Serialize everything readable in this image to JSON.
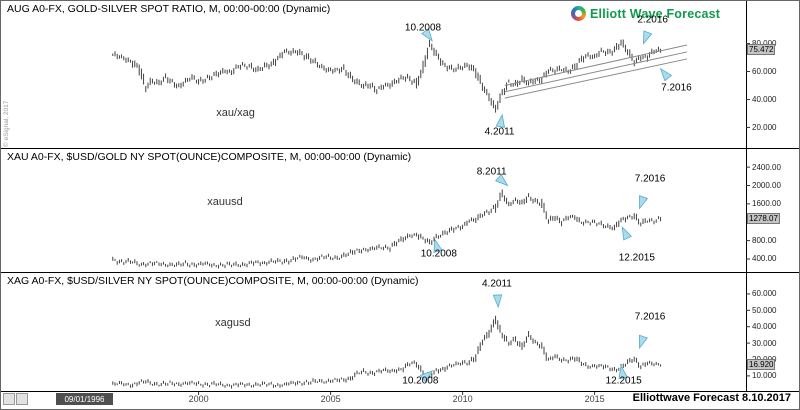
{
  "branding": {
    "logo_text": "Elliott Wave Forecast",
    "logo_colors": [
      "#29a8ab",
      "#3bb54a",
      "#f59e1b",
      "#e64c3c",
      "#7f55a0",
      "#2d6cb5",
      "#29a8ab"
    ],
    "watermark": "Elliottwave Forecast 8.10.2017",
    "vendor_copyright": "© eSignal, 2017"
  },
  "time_axis": {
    "selected_date": "09/01/1996",
    "ticks": [
      {
        "year": 2000,
        "label": "2000"
      },
      {
        "year": 2005,
        "label": "2005"
      },
      {
        "year": 2010,
        "label": "2010"
      },
      {
        "year": 2015,
        "label": "2015"
      }
    ]
  },
  "chart_data": [
    {
      "type": "bar",
      "style": "monthly-hlc-bars",
      "title": "AUG A0-FX, GOLD-SILVER SPOT RATIO, M, 00:00-00:00 (Dynamic)",
      "series_label": "xau/xag",
      "series_label_pos": {
        "year": 2001.4,
        "value": 30
      },
      "x_start": 1996.75,
      "x_step": 0.25,
      "values": [
        72,
        70,
        69,
        67,
        62,
        48,
        54,
        52,
        55,
        52,
        50,
        53,
        55,
        53,
        55,
        56,
        58,
        61,
        60,
        63,
        64,
        64,
        61,
        63,
        65,
        70,
        74,
        73,
        75,
        72,
        68,
        65,
        63,
        61,
        60,
        62,
        57,
        52,
        49,
        51,
        47,
        49,
        50,
        54,
        56,
        54,
        51,
        63,
        79,
        72,
        66,
        63,
        61,
        63,
        65,
        60,
        49,
        42,
        34,
        44,
        51,
        51,
        55,
        51,
        53,
        55,
        61,
        60,
        62,
        61,
        63,
        68,
        72,
        71,
        74,
        73,
        76,
        81,
        74,
        67,
        71,
        70,
        74,
        75.4
      ],
      "ylim": [
        6,
        99
      ],
      "yticks": [
        {
          "value": 80,
          "label": "80.000"
        },
        {
          "value": 60,
          "label": "60.000"
        },
        {
          "value": 40,
          "label": "40.000"
        },
        {
          "value": 20,
          "label": "20.000"
        }
      ],
      "price_tag": "75.472",
      "price_tag_value": 75.47,
      "channel_lines": [
        {
          "x1": 2011.6,
          "v1": 50,
          "x2": 2018.5,
          "v2": 79
        },
        {
          "x1": 2011.6,
          "v1": 45.5,
          "x2": 2018.5,
          "v2": 74
        },
        {
          "x1": 2011.6,
          "v1": 41,
          "x2": 2018.5,
          "v2": 69
        }
      ],
      "annotations": [
        {
          "text": "10.2008",
          "label": {
            "year": 2008.5,
            "value": 91
          },
          "target": {
            "year": 2008.85,
            "value": 82
          }
        },
        {
          "text": "2.2016",
          "label": {
            "year": 2017.2,
            "value": 97
          },
          "target": {
            "year": 2016.85,
            "value": 80
          }
        },
        {
          "text": "7.2016",
          "label": {
            "year": 2018.1,
            "value": 48
          },
          "target": {
            "year": 2017.5,
            "value": 62
          }
        },
        {
          "text": "4.2011",
          "label": {
            "year": 2011.4,
            "value": 17
          },
          "target": {
            "year": 2011.5,
            "value": 29
          }
        }
      ]
    },
    {
      "type": "bar",
      "style": "monthly-hlc-bars",
      "title": "XAU A0-FX, $USD/GOLD NY SPOT(OUNCE)COMPOSITE, M, 00:00-00:00 (Dynamic)",
      "series_label": "xauusd",
      "series_label_pos": {
        "year": 2001.0,
        "value": 1650
      },
      "x_start": 1996.75,
      "x_step": 0.25,
      "values": [
        383,
        352,
        342,
        324,
        290,
        300,
        295,
        289,
        288,
        280,
        262,
        299,
        290,
        278,
        289,
        273,
        272,
        260,
        270,
        289,
        277,
        302,
        318,
        323,
        348,
        334,
        346,
        384,
        416,
        424,
        392,
        418,
        438,
        428,
        436,
        472,
        517,
        582,
        614,
        599,
        636,
        664,
        651,
        743,
        834,
        930,
        925,
        830,
        760,
        890,
        930,
        1000,
        1090,
        1115,
        1215,
        1250,
        1390,
        1430,
        1500,
        1830,
        1600,
        1670,
        1600,
        1770,
        1670,
        1590,
        1230,
        1330,
        1200,
        1290,
        1320,
        1210,
        1190,
        1180,
        1170,
        1115,
        1060,
        1235,
        1320,
        1340,
        1150,
        1250,
        1240,
        1278
      ],
      "ylim": [
        160,
        2490
      ],
      "yticks": [
        {
          "value": 2400,
          "label": "2400.00"
        },
        {
          "value": 2000,
          "label": "2000.00"
        },
        {
          "value": 1600,
          "label": "1600.00"
        },
        {
          "value": 800,
          "label": "800.00"
        },
        {
          "value": 400,
          "label": "400.00"
        }
      ],
      "price_tag": "1278.07",
      "price_tag_value": 1278,
      "channel_lines": [],
      "annotations": [
        {
          "text": "8.2011",
          "label": {
            "year": 2011.1,
            "value": 2300
          },
          "target": {
            "year": 2011.7,
            "value": 2000
          }
        },
        {
          "text": "7.2016",
          "label": {
            "year": 2017.1,
            "value": 2150
          },
          "target": {
            "year": 2016.7,
            "value": 1500
          }
        },
        {
          "text": "10.2008",
          "label": {
            "year": 2009.1,
            "value": 500
          },
          "target": {
            "year": 2008.95,
            "value": 820
          }
        },
        {
          "text": "12.2015",
          "label": {
            "year": 2016.6,
            "value": 430
          },
          "target": {
            "year": 2016.05,
            "value": 1090
          }
        }
      ]
    },
    {
      "type": "bar",
      "style": "monthly-hlc-bars",
      "title": "XAG A0-FX, $USD/SILVER NY SPOT(OUNCE)COMPOSITE, M, 00:00-00:00 (Dynamic)",
      "series_label": "xagusd",
      "series_label_pos": {
        "year": 2001.3,
        "value": 42
      },
      "x_start": 1996.75,
      "x_step": 0.25,
      "values": [
        5.0,
        5.1,
        4.8,
        4.7,
        5.9,
        6.3,
        5.4,
        5.1,
        5.0,
        5.2,
        5.2,
        5.6,
        5.3,
        5.1,
        5.0,
        4.9,
        4.6,
        4.4,
        4.4,
        4.6,
        4.4,
        4.6,
        4.9,
        4.6,
        4.7,
        4.5,
        4.6,
        5.2,
        5.9,
        6.1,
        5.9,
        6.7,
        6.8,
        7.2,
        7.1,
        7.5,
        8.8,
        11.5,
        12.2,
        11.6,
        12.8,
        13.3,
        12.6,
        13.7,
        14.7,
        17.2,
        17.4,
        12.5,
        9.6,
        12.6,
        14.0,
        16.5,
        16.8,
        17.5,
        18.6,
        21.8,
        30.6,
        36,
        45,
        35,
        29.5,
        32.5,
        28,
        34.5,
        30,
        28.5,
        20,
        21.5,
        19.5,
        20,
        21,
        17.5,
        15.8,
        16.5,
        15.8,
        14.8,
        13.9,
        15.3,
        17.8,
        20.2,
        16.2,
        18.0,
        16.7,
        16.9
      ],
      "ylim": [
        2,
        63
      ],
      "yticks": [
        {
          "value": 60,
          "label": "60.000"
        },
        {
          "value": 50,
          "label": "50.000"
        },
        {
          "value": 40,
          "label": "40.000"
        },
        {
          "value": 30,
          "label": "30.000"
        },
        {
          "value": 20,
          "label": "20.000"
        },
        {
          "value": 10,
          "label": "10.000"
        }
      ],
      "price_tag": "16.920",
      "price_tag_value": 16.92,
      "channel_lines": [],
      "annotations": [
        {
          "text": "4.2011",
          "label": {
            "year": 2011.3,
            "value": 66
          },
          "target": {
            "year": 2011.35,
            "value": 52
          }
        },
        {
          "text": "7.2016",
          "label": {
            "year": 2017.1,
            "value": 46
          },
          "target": {
            "year": 2016.7,
            "value": 27
          }
        },
        {
          "text": "10.2008",
          "label": {
            "year": 2008.4,
            "value": 7
          },
          "target": {
            "year": 2008.85,
            "value": 13
          }
        },
        {
          "text": "12.2015",
          "label": {
            "year": 2016.1,
            "value": 7
          },
          "target": {
            "year": 2016.0,
            "value": 16
          }
        }
      ]
    }
  ]
}
